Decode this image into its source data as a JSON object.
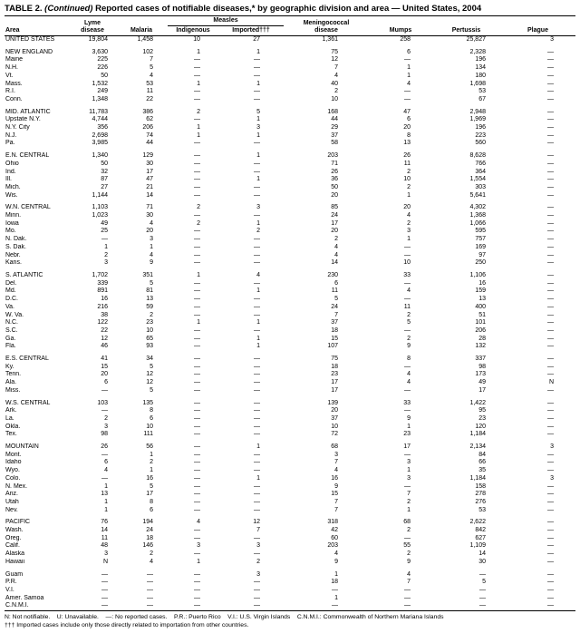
{
  "title": {
    "prefix": "TABLE 2. ",
    "continued": "(Continued)",
    "rest": " Reported cases of notifiable diseases,* by geographic division and area — United States, 2004"
  },
  "columns": {
    "area": "Area",
    "lyme_1": "Lyme",
    "lyme_2": "disease",
    "malaria": "Malaria",
    "measles": "Measles",
    "indigenous": "Indigenous",
    "imported": "Imported†††",
    "mening_1": "Meningococcal",
    "mening_2": "disease",
    "mumps": "Mumps",
    "pertussis": "Pertussis",
    "plague": "Plague"
  },
  "table": {
    "groups": [
      {
        "rows": [
          {
            "area": "UNITED STATES",
            "values": [
              "19,804",
              "1,458",
              "10",
              "27",
              "1,361",
              "258",
              "25,827",
              "3"
            ]
          }
        ]
      },
      {
        "rows": [
          {
            "area": "NEW ENGLAND",
            "values": [
              "3,630",
              "102",
              "1",
              "1",
              "75",
              "6",
              "2,328",
              "—"
            ]
          },
          {
            "area": "Maine",
            "values": [
              "225",
              "7",
              "—",
              "—",
              "12",
              "—",
              "196",
              "—"
            ]
          },
          {
            "area": "N.H.",
            "values": [
              "226",
              "5",
              "—",
              "—",
              "7",
              "1",
              "134",
              "—"
            ]
          },
          {
            "area": "Vt.",
            "values": [
              "50",
              "4",
              "—",
              "—",
              "4",
              "1",
              "180",
              "—"
            ]
          },
          {
            "area": "Mass.",
            "values": [
              "1,532",
              "53",
              "1",
              "1",
              "40",
              "4",
              "1,698",
              "—"
            ]
          },
          {
            "area": "R.I.",
            "values": [
              "249",
              "11",
              "—",
              "—",
              "2",
              "—",
              "53",
              "—"
            ]
          },
          {
            "area": "Conn.",
            "values": [
              "1,348",
              "22",
              "—",
              "—",
              "10",
              "—",
              "67",
              "—"
            ]
          }
        ]
      },
      {
        "rows": [
          {
            "area": "MID. ATLANTIC",
            "values": [
              "11,783",
              "386",
              "2",
              "5",
              "168",
              "47",
              "2,948",
              "—"
            ]
          },
          {
            "area": "Upstate N.Y.",
            "values": [
              "4,744",
              "62",
              "—",
              "1",
              "44",
              "6",
              "1,969",
              "—"
            ]
          },
          {
            "area": "N.Y. City",
            "values": [
              "356",
              "206",
              "1",
              "3",
              "29",
              "20",
              "196",
              "—"
            ]
          },
          {
            "area": "N.J.",
            "values": [
              "2,698",
              "74",
              "1",
              "1",
              "37",
              "8",
              "223",
              "—"
            ]
          },
          {
            "area": "Pa.",
            "values": [
              "3,985",
              "44",
              "—",
              "—",
              "58",
              "13",
              "560",
              "—"
            ]
          }
        ]
      },
      {
        "rows": [
          {
            "area": "E.N. CENTRAL",
            "values": [
              "1,340",
              "129",
              "—",
              "1",
              "203",
              "26",
              "8,628",
              "—"
            ]
          },
          {
            "area": "Ohio",
            "values": [
              "50",
              "30",
              "—",
              "—",
              "71",
              "11",
              "766",
              "—"
            ]
          },
          {
            "area": "Ind.",
            "values": [
              "32",
              "17",
              "—",
              "—",
              "26",
              "2",
              "364",
              "—"
            ]
          },
          {
            "area": "Ill.",
            "values": [
              "87",
              "47",
              "—",
              "1",
              "36",
              "10",
              "1,554",
              "—"
            ]
          },
          {
            "area": "Mich.",
            "values": [
              "27",
              "21",
              "—",
              "—",
              "50",
              "2",
              "303",
              "—"
            ]
          },
          {
            "area": "Wis.",
            "values": [
              "1,144",
              "14",
              "—",
              "—",
              "20",
              "1",
              "5,641",
              "—"
            ]
          }
        ]
      },
      {
        "rows": [
          {
            "area": "W.N. CENTRAL",
            "values": [
              "1,103",
              "71",
              "2",
              "3",
              "85",
              "20",
              "4,302",
              "—"
            ]
          },
          {
            "area": "Minn.",
            "values": [
              "1,023",
              "30",
              "—",
              "—",
              "24",
              "4",
              "1,368",
              "—"
            ]
          },
          {
            "area": "Iowa",
            "values": [
              "49",
              "4",
              "2",
              "1",
              "17",
              "2",
              "1,066",
              "—"
            ]
          },
          {
            "area": "Mo.",
            "values": [
              "25",
              "20",
              "—",
              "2",
              "20",
              "3",
              "595",
              "—"
            ]
          },
          {
            "area": "N. Dak.",
            "values": [
              "—",
              "3",
              "—",
              "—",
              "2",
              "1",
              "757",
              "—"
            ]
          },
          {
            "area": "S. Dak.",
            "values": [
              "1",
              "1",
              "—",
              "—",
              "4",
              "—",
              "169",
              "—"
            ]
          },
          {
            "area": "Nebr.",
            "values": [
              "2",
              "4",
              "—",
              "—",
              "4",
              "—",
              "97",
              "—"
            ]
          },
          {
            "area": "Kans.",
            "values": [
              "3",
              "9",
              "—",
              "—",
              "14",
              "10",
              "250",
              "—"
            ]
          }
        ]
      },
      {
        "rows": [
          {
            "area": "S. ATLANTIC",
            "values": [
              "1,702",
              "351",
              "1",
              "4",
              "230",
              "33",
              "1,106",
              "—"
            ]
          },
          {
            "area": "Del.",
            "values": [
              "339",
              "5",
              "—",
              "—",
              "6",
              "—",
              "16",
              "—"
            ]
          },
          {
            "area": "Md.",
            "values": [
              "891",
              "81",
              "—",
              "1",
              "11",
              "4",
              "159",
              "—"
            ]
          },
          {
            "area": "D.C.",
            "values": [
              "16",
              "13",
              "—",
              "—",
              "5",
              "—",
              "13",
              "—"
            ]
          },
          {
            "area": "Va.",
            "values": [
              "216",
              "59",
              "—",
              "—",
              "24",
              "11",
              "400",
              "—"
            ]
          },
          {
            "area": "W. Va.",
            "values": [
              "38",
              "2",
              "—",
              "—",
              "7",
              "2",
              "51",
              "—"
            ]
          },
          {
            "area": "N.C.",
            "values": [
              "122",
              "23",
              "1",
              "1",
              "37",
              "5",
              "101",
              "—"
            ]
          },
          {
            "area": "S.C.",
            "values": [
              "22",
              "10",
              "—",
              "—",
              "18",
              "—",
              "206",
              "—"
            ]
          },
          {
            "area": "Ga.",
            "values": [
              "12",
              "65",
              "—",
              "1",
              "15",
              "2",
              "28",
              "—"
            ]
          },
          {
            "area": "Fla.",
            "values": [
              "46",
              "93",
              "—",
              "1",
              "107",
              "9",
              "132",
              "—"
            ]
          }
        ]
      },
      {
        "rows": [
          {
            "area": "E.S. CENTRAL",
            "values": [
              "41",
              "34",
              "—",
              "—",
              "75",
              "8",
              "337",
              "—"
            ]
          },
          {
            "area": "Ky.",
            "values": [
              "15",
              "5",
              "—",
              "—",
              "18",
              "—",
              "98",
              "—"
            ]
          },
          {
            "area": "Tenn.",
            "values": [
              "20",
              "12",
              "—",
              "—",
              "23",
              "4",
              "173",
              "—"
            ]
          },
          {
            "area": "Ala.",
            "values": [
              "6",
              "12",
              "—",
              "—",
              "17",
              "4",
              "49",
              "N"
            ]
          },
          {
            "area": "Miss.",
            "values": [
              "—",
              "5",
              "—",
              "—",
              "17",
              "—",
              "17",
              "—"
            ]
          }
        ]
      },
      {
        "rows": [
          {
            "area": "W.S. CENTRAL",
            "values": [
              "103",
              "135",
              "—",
              "—",
              "139",
              "33",
              "1,422",
              "—"
            ]
          },
          {
            "area": "Ark.",
            "values": [
              "—",
              "8",
              "—",
              "—",
              "20",
              "—",
              "95",
              "—"
            ]
          },
          {
            "area": "La.",
            "values": [
              "2",
              "6",
              "—",
              "—",
              "37",
              "9",
              "23",
              "—"
            ]
          },
          {
            "area": "Okla.",
            "values": [
              "3",
              "10",
              "—",
              "—",
              "10",
              "1",
              "120",
              "—"
            ]
          },
          {
            "area": "Tex.",
            "values": [
              "98",
              "111",
              "—",
              "—",
              "72",
              "23",
              "1,184",
              "—"
            ]
          }
        ]
      },
      {
        "rows": [
          {
            "area": "MOUNTAIN",
            "values": [
              "26",
              "56",
              "—",
              "1",
              "68",
              "17",
              "2,134",
              "3"
            ]
          },
          {
            "area": "Mont.",
            "values": [
              "—",
              "1",
              "—",
              "—",
              "3",
              "—",
              "84",
              "—"
            ]
          },
          {
            "area": "Idaho",
            "values": [
              "6",
              "2",
              "—",
              "—",
              "7",
              "3",
              "66",
              "—"
            ]
          },
          {
            "area": "Wyo.",
            "values": [
              "4",
              "1",
              "—",
              "—",
              "4",
              "1",
              "35",
              "—"
            ]
          },
          {
            "area": "Colo.",
            "values": [
              "—",
              "16",
              "—",
              "1",
              "16",
              "3",
              "1,184",
              "3"
            ]
          },
          {
            "area": "N. Mex.",
            "values": [
              "1",
              "5",
              "—",
              "—",
              "9",
              "—",
              "158",
              "—"
            ]
          },
          {
            "area": "Ariz.",
            "values": [
              "13",
              "17",
              "—",
              "—",
              "15",
              "7",
              "278",
              "—"
            ]
          },
          {
            "area": "Utah",
            "values": [
              "1",
              "8",
              "—",
              "—",
              "7",
              "2",
              "276",
              "—"
            ]
          },
          {
            "area": "Nev.",
            "values": [
              "1",
              "6",
              "—",
              "—",
              "7",
              "1",
              "53",
              "—"
            ]
          }
        ]
      },
      {
        "rows": [
          {
            "area": "PACIFIC",
            "values": [
              "76",
              "194",
              "4",
              "12",
              "318",
              "68",
              "2,622",
              "—"
            ]
          },
          {
            "area": "Wash.",
            "values": [
              "14",
              "24",
              "—",
              "7",
              "42",
              "2",
              "842",
              "—"
            ]
          },
          {
            "area": "Oreg.",
            "values": [
              "11",
              "18",
              "—",
              "—",
              "60",
              "—",
              "627",
              "—"
            ]
          },
          {
            "area": "Calif.",
            "values": [
              "48",
              "146",
              "3",
              "3",
              "203",
              "55",
              "1,109",
              "—"
            ]
          },
          {
            "area": "Alaska",
            "values": [
              "3",
              "2",
              "—",
              "—",
              "4",
              "2",
              "14",
              "—"
            ]
          },
          {
            "area": "Hawaii",
            "values": [
              "N",
              "4",
              "1",
              "2",
              "9",
              "9",
              "30",
              "—"
            ]
          }
        ]
      },
      {
        "rows": [
          {
            "area": "Guam",
            "values": [
              "—",
              "—",
              "—",
              "3",
              "1",
              "4",
              "—",
              "—"
            ]
          },
          {
            "area": "P.R.",
            "values": [
              "—",
              "—",
              "—",
              "—",
              "18",
              "7",
              "5",
              "—"
            ]
          },
          {
            "area": "V.I.",
            "values": [
              "—",
              "—",
              "—",
              "—",
              "—",
              "—",
              "—",
              "—"
            ]
          },
          {
            "area": "Amer. Samoa",
            "values": [
              "—",
              "—",
              "—",
              "—",
              "1",
              "—",
              "—",
              "—"
            ]
          },
          {
            "area": "C.N.M.I.",
            "values": [
              "—",
              "—",
              "—",
              "—",
              "—",
              "—",
              "—",
              "—"
            ]
          }
        ]
      }
    ]
  },
  "footer": {
    "line1": "N: Not notifiable.    U: Unavailable.    —: No reported cases.    P.R.: Puerto Rico    V.I.: U.S. Virgin Islands    C.N.M.I.: Commonwealth of Northern Mariana Islands",
    "line2": "††† Imported cases include only those directly related to importation from other countries."
  }
}
